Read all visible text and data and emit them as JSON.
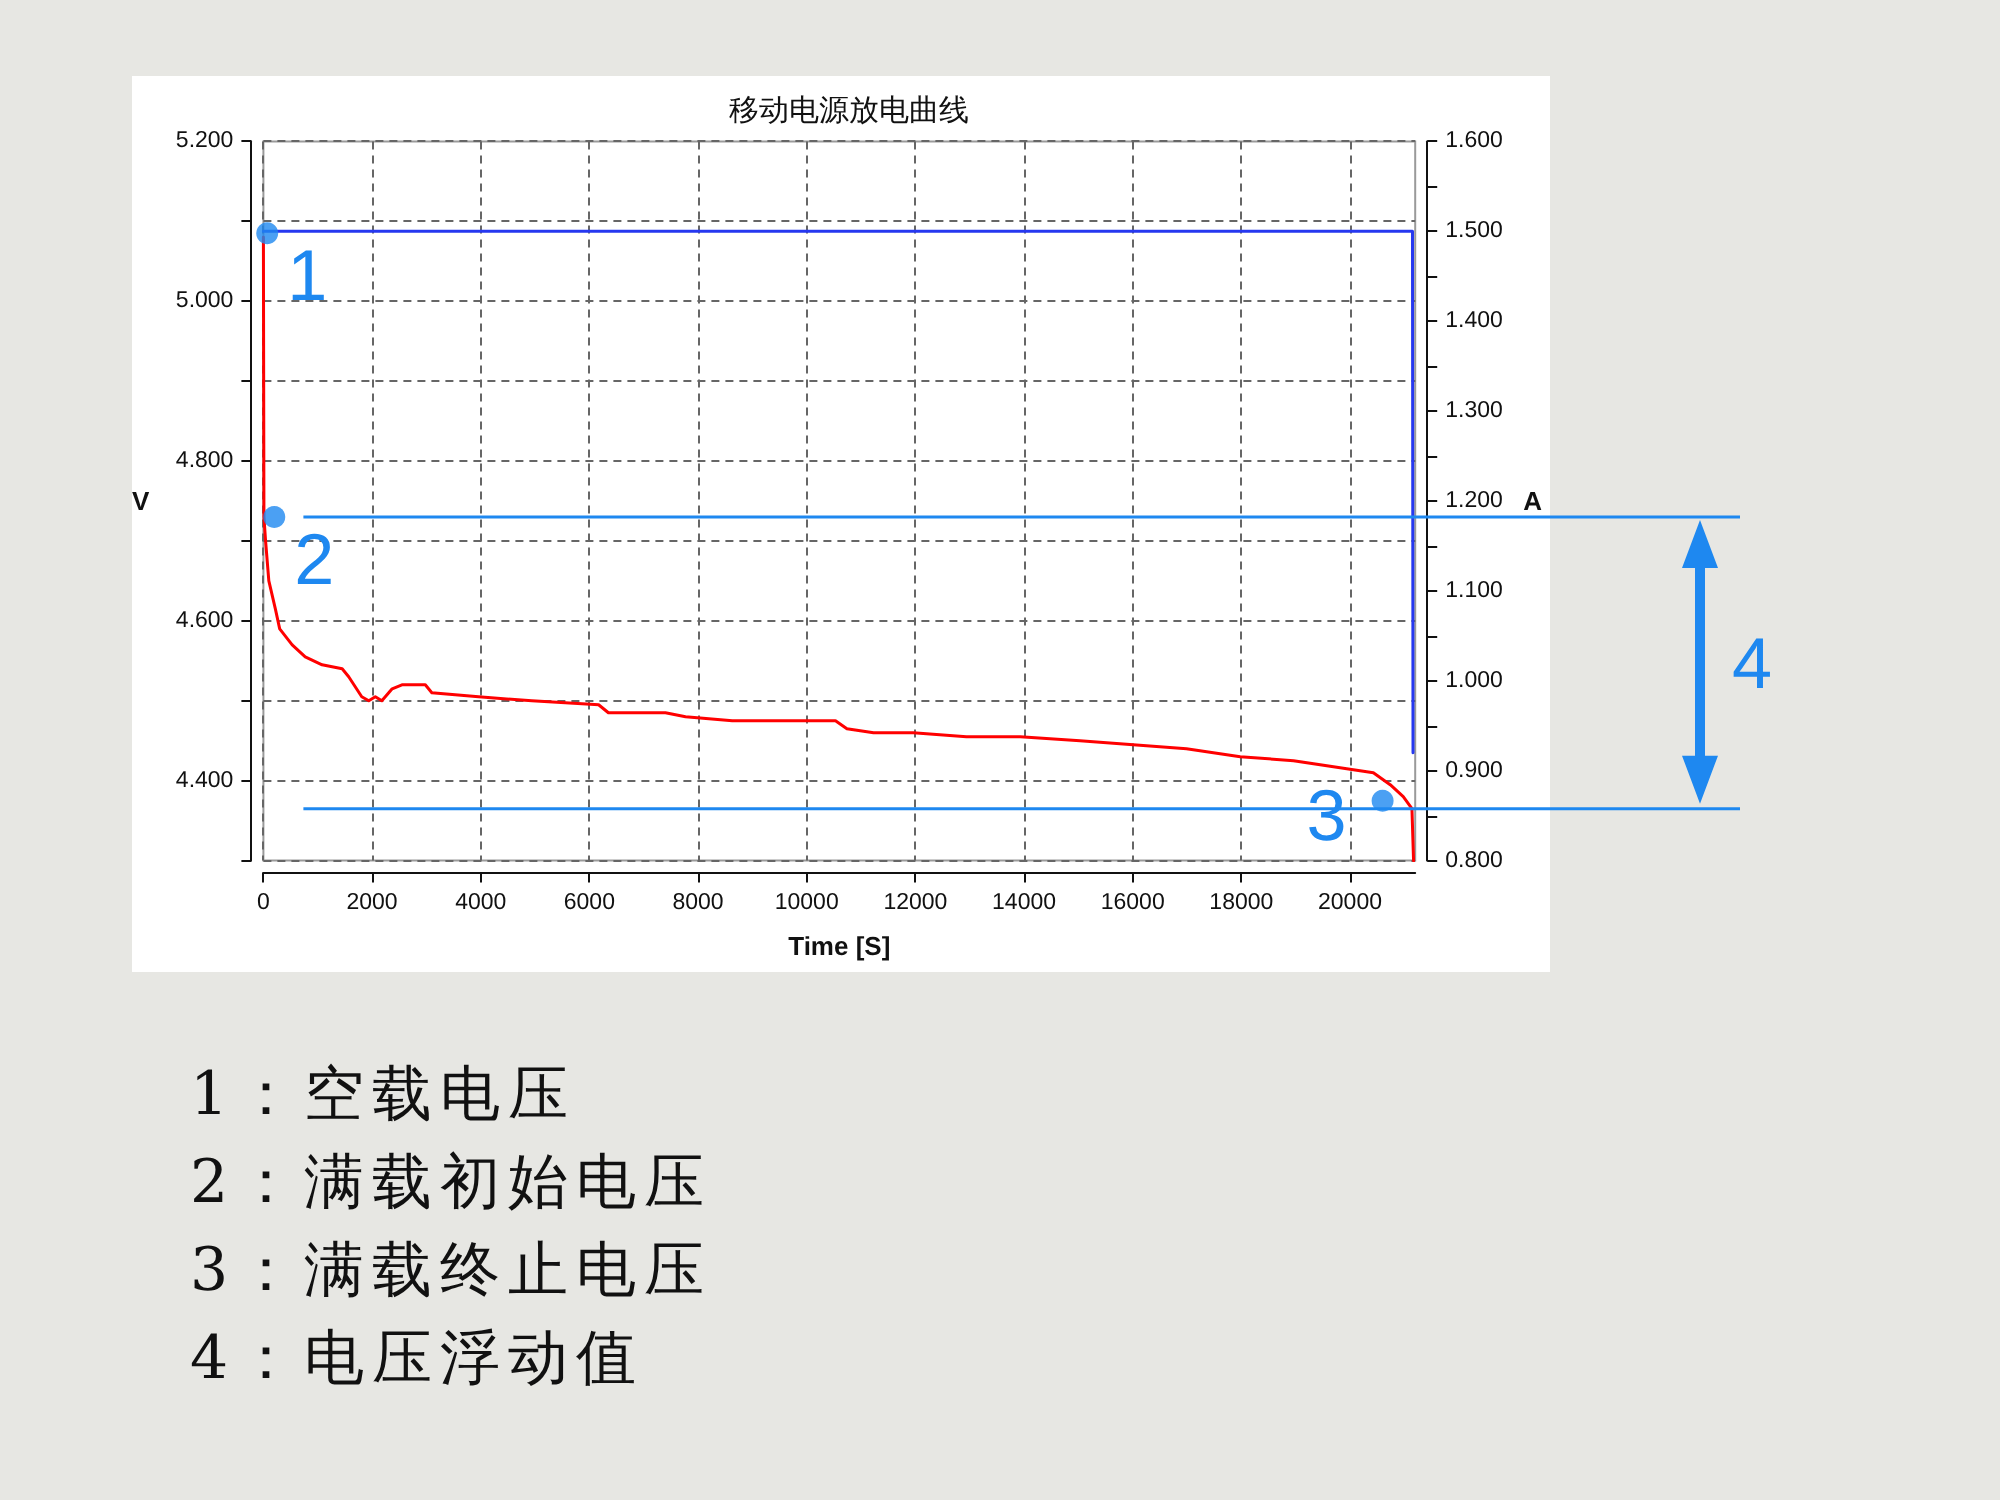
{
  "chart_data": {
    "type": "line",
    "title": "移动电源放电曲线",
    "xlabel": "Time [S]",
    "ylabel": "V",
    "y2label": "A",
    "xlim": [
      0,
      21200
    ],
    "xticks": [
      0,
      2000,
      4000,
      6000,
      8000,
      10000,
      12000,
      14000,
      16000,
      18000,
      20000
    ],
    "ylim": [
      4.3,
      5.2
    ],
    "yticks": [
      {
        "value": 4.3,
        "label": null
      },
      {
        "value": 4.4,
        "label": "4.400"
      },
      {
        "value": 4.5,
        "label": null
      },
      {
        "value": 4.6,
        "label": "4.600"
      },
      {
        "value": 4.7,
        "label": null
      },
      {
        "value": 4.8,
        "label": "4.800"
      },
      {
        "value": 4.9,
        "label": null
      },
      {
        "value": 5.0,
        "label": "5.000"
      },
      {
        "value": 5.1,
        "label": null
      },
      {
        "value": 5.2,
        "label": "5.200"
      }
    ],
    "y2lim": [
      0.8,
      1.6
    ],
    "y2ticks": [
      {
        "value": 0.8,
        "label": "0.800"
      },
      {
        "value": 0.85,
        "label": null
      },
      {
        "value": 0.9,
        "label": "0.900"
      },
      {
        "value": 0.95,
        "label": null
      },
      {
        "value": 1.0,
        "label": "1.000"
      },
      {
        "value": 1.05,
        "label": null
      },
      {
        "value": 1.1,
        "label": "1.100"
      },
      {
        "value": 1.15,
        "label": null
      },
      {
        "value": 1.2,
        "label": "1.200"
      },
      {
        "value": 1.25,
        "label": null
      },
      {
        "value": 1.3,
        "label": "1.300"
      },
      {
        "value": 1.35,
        "label": null
      },
      {
        "value": 1.4,
        "label": "1.400"
      },
      {
        "value": 1.45,
        "label": null
      },
      {
        "value": 1.5,
        "label": "1.500"
      },
      {
        "value": 1.55,
        "label": null
      },
      {
        "value": 1.6,
        "label": "1.600"
      }
    ],
    "grid": true,
    "series": [
      {
        "color": "#ff0000",
        "x": [
          0,
          10,
          40,
          100,
          220,
          300,
          530,
          770,
          1080,
          1450,
          1570,
          1810,
          1940,
          2060,
          2180,
          2370,
          2550,
          2980,
          3100,
          3960,
          4940,
          6170,
          6350,
          7400,
          7770,
          8630,
          8990,
          10530,
          10740,
          11230,
          11960,
          12940,
          13930,
          15030,
          16010,
          16990,
          17980,
          18960,
          19940,
          20430,
          20740,
          20980,
          21140,
          21170
        ],
        "values": [
          5.08,
          4.73,
          4.7,
          4.65,
          4.615,
          4.59,
          4.57,
          4.555,
          4.545,
          4.54,
          4.53,
          4.505,
          4.5,
          4.505,
          4.5,
          4.515,
          4.52,
          4.52,
          4.51,
          4.505,
          4.5,
          4.495,
          4.485,
          4.485,
          4.48,
          4.475,
          4.475,
          4.475,
          4.465,
          4.46,
          4.46,
          4.455,
          4.455,
          4.45,
          4.445,
          4.44,
          4.43,
          4.425,
          4.415,
          4.41,
          4.395,
          4.38,
          4.365,
          4.3
        ]
      },
      {
        "axis": "y2",
        "color": "#2638f0",
        "x": [
          0,
          2000,
          4000,
          6000,
          8000,
          10000,
          12000,
          14000,
          16000,
          18000,
          20000,
          21150,
          21160
        ],
        "values": [
          1.5,
          1.5,
          1.5,
          1.5,
          1.5,
          1.5,
          1.5,
          1.5,
          1.5,
          1.5,
          1.5,
          1.5,
          0.92
        ]
      },
      {
        "type": "scatter",
        "marker": "circle",
        "color": "#1e88f0",
        "x": [
          70,
          200,
          20600
        ],
        "values": [
          5.085,
          4.73,
          4.375
        ]
      }
    ],
    "ref_lines": [
      {
        "axis": "y",
        "value": 4.73,
        "color": "#1e88f0"
      },
      {
        "axis": "y",
        "value": 4.365,
        "color": "#1e88f0"
      }
    ],
    "annotations": [
      {
        "text": "1",
        "x": 70,
        "y": 5.085
      },
      {
        "text": "2",
        "x": 200,
        "y": 4.73
      },
      {
        "text": "3",
        "x": 20600,
        "y": 4.375
      },
      "4",
      "1：空载电压",
      "2：满载初始电压",
      "3：满载终止电压",
      "4：电压浮动值"
    ]
  }
}
